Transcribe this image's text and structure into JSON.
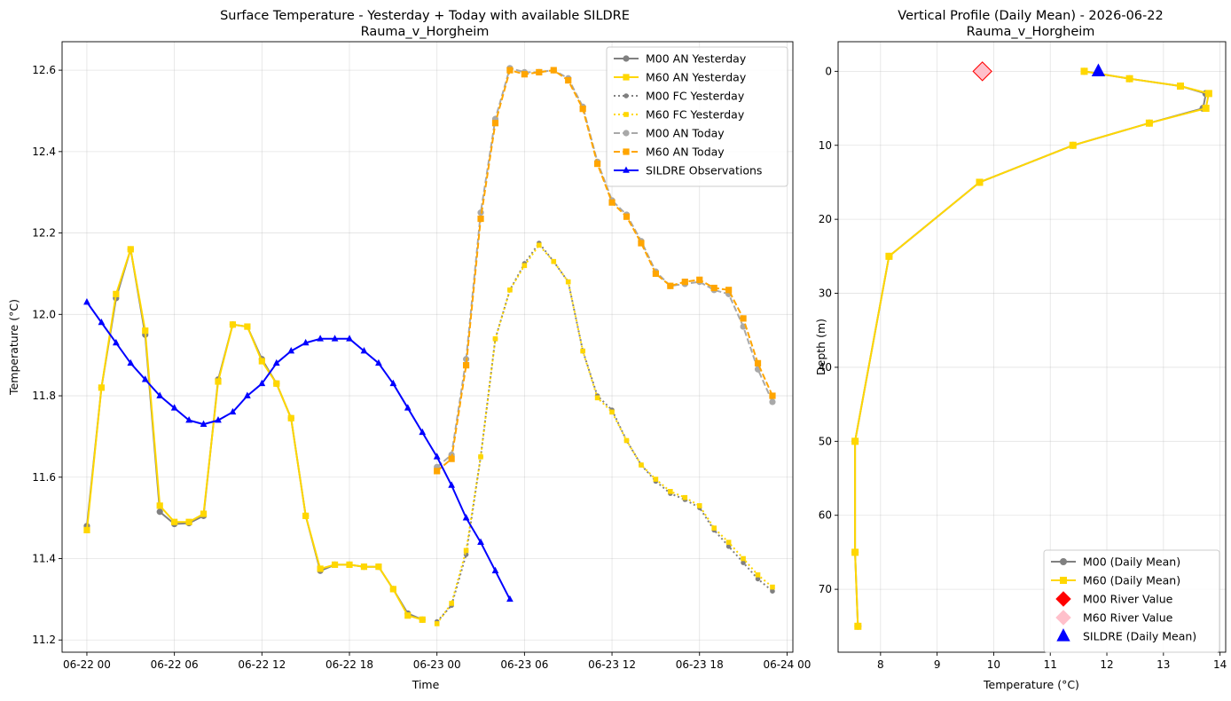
{
  "colors": {
    "gray": "#808080",
    "yellow": "#FFD700",
    "lightgray": "#A9A9A9",
    "orange": "#FFA500",
    "blue": "#0000FF",
    "red": "#FF0000",
    "pink": "#FFC0CB"
  },
  "chart_data": [
    {
      "type": "line",
      "title": "Surface Temperature - Yesterday + Today with available SILDRE",
      "subtitle": "Rauma_v_Horgheim",
      "xlabel": "Time",
      "ylabel": "Temperature (°C)",
      "xlim": [
        -1.7,
        48.4
      ],
      "ylim": [
        11.17,
        12.67
      ],
      "grid": true,
      "legend_position": "top-right",
      "xticks": [
        {
          "v": 0,
          "label": "06-22 00"
        },
        {
          "v": 6,
          "label": "06-22 06"
        },
        {
          "v": 12,
          "label": "06-22 12"
        },
        {
          "v": 18,
          "label": "06-22 18"
        },
        {
          "v": 24,
          "label": "06-23 00"
        },
        {
          "v": 30,
          "label": "06-23 06"
        },
        {
          "v": 36,
          "label": "06-23 12"
        },
        {
          "v": 42,
          "label": "06-23 18"
        },
        {
          "v": 48,
          "label": "06-24 00"
        }
      ],
      "yticks": [
        {
          "v": 11.2,
          "label": "11.2"
        },
        {
          "v": 11.4,
          "label": "11.4"
        },
        {
          "v": 11.6,
          "label": "11.6"
        },
        {
          "v": 11.8,
          "label": "11.8"
        },
        {
          "v": 12.0,
          "label": "12.0"
        },
        {
          "v": 12.2,
          "label": "12.2"
        },
        {
          "v": 12.4,
          "label": "12.4"
        },
        {
          "v": 12.6,
          "label": "12.6"
        }
      ],
      "series": [
        {
          "name": "M00 AN Yesterday",
          "color": "gray",
          "marker": "circle",
          "dash": "solid",
          "x": [
            0,
            1,
            2,
            3,
            4,
            5,
            6,
            7,
            8,
            9,
            10,
            11,
            12,
            13,
            14,
            15,
            16,
            17,
            18,
            19,
            20,
            21,
            22,
            23
          ],
          "y": [
            11.48,
            11.82,
            12.04,
            12.16,
            11.95,
            11.515,
            11.485,
            11.487,
            11.505,
            11.84,
            11.975,
            11.97,
            11.89,
            11.83,
            11.745,
            11.505,
            11.37,
            11.385,
            11.385,
            11.38,
            11.38,
            11.325,
            11.265,
            11.25
          ]
        },
        {
          "name": "M60 AN Yesterday",
          "color": "yellow",
          "marker": "square",
          "dash": "solid",
          "x": [
            0,
            1,
            2,
            3,
            4,
            5,
            6,
            7,
            8,
            9,
            10,
            11,
            12,
            13,
            14,
            15,
            16,
            17,
            18,
            19,
            20,
            21,
            22,
            23
          ],
          "y": [
            11.47,
            11.82,
            12.05,
            12.16,
            11.96,
            11.53,
            11.49,
            11.49,
            11.51,
            11.835,
            11.975,
            11.97,
            11.885,
            11.83,
            11.745,
            11.505,
            11.375,
            11.385,
            11.385,
            11.38,
            11.38,
            11.325,
            11.26,
            11.25
          ]
        },
        {
          "name": "M00 FC Yesterday",
          "color": "gray",
          "marker": "circle",
          "dash": "dotted",
          "x": [
            24,
            25,
            26,
            27,
            28,
            29,
            30,
            31,
            32,
            33,
            34,
            35,
            36,
            37,
            38,
            39,
            40,
            41,
            42,
            43,
            44,
            45,
            46,
            47
          ],
          "y": [
            11.245,
            11.285,
            11.41,
            11.65,
            11.94,
            12.06,
            12.125,
            12.175,
            12.13,
            12.08,
            11.91,
            11.8,
            11.765,
            11.69,
            11.63,
            11.59,
            11.56,
            11.545,
            11.525,
            11.47,
            11.43,
            11.39,
            11.35,
            11.32
          ]
        },
        {
          "name": "M60 FC Yesterday",
          "color": "yellow",
          "marker": "square",
          "dash": "dotted",
          "x": [
            24,
            25,
            26,
            27,
            28,
            29,
            30,
            31,
            32,
            33,
            34,
            35,
            36,
            37,
            38,
            39,
            40,
            41,
            42,
            43,
            44,
            45,
            46,
            47
          ],
          "y": [
            11.24,
            11.29,
            11.42,
            11.65,
            11.94,
            12.06,
            12.12,
            12.17,
            12.13,
            12.08,
            11.91,
            11.795,
            11.76,
            11.69,
            11.63,
            11.595,
            11.565,
            11.55,
            11.53,
            11.475,
            11.44,
            11.4,
            11.36,
            11.33
          ]
        },
        {
          "name": "M00 AN Today",
          "color": "lightgray",
          "marker": "circle",
          "dash": "dashed",
          "x": [
            24,
            25,
            26,
            27,
            28,
            29,
            30,
            31,
            32,
            33,
            34,
            35,
            36,
            37,
            38,
            39,
            40,
            41,
            42,
            43,
            44,
            45,
            46,
            47
          ],
          "y": [
            11.625,
            11.655,
            11.89,
            12.25,
            12.48,
            12.605,
            12.595,
            12.595,
            12.6,
            12.58,
            12.51,
            12.375,
            12.28,
            12.245,
            12.18,
            12.105,
            12.07,
            12.075,
            12.08,
            12.06,
            12.05,
            11.97,
            11.865,
            11.785
          ]
        },
        {
          "name": "M60 AN Today",
          "color": "orange",
          "marker": "square",
          "dash": "dashed",
          "x": [
            24,
            25,
            26,
            27,
            28,
            29,
            30,
            31,
            32,
            33,
            34,
            35,
            36,
            37,
            38,
            39,
            40,
            41,
            42,
            43,
            44,
            45,
            46,
            47
          ],
          "y": [
            11.615,
            11.645,
            11.875,
            12.235,
            12.47,
            12.6,
            12.59,
            12.595,
            12.6,
            12.575,
            12.505,
            12.37,
            12.275,
            12.24,
            12.175,
            12.1,
            12.07,
            12.08,
            12.085,
            12.065,
            12.06,
            11.99,
            11.88,
            11.8
          ]
        },
        {
          "name": "SILDRE Observations",
          "color": "blue",
          "marker": "triangle",
          "dash": "solid",
          "x": [
            0,
            1,
            2,
            3,
            4,
            5,
            6,
            7,
            8,
            9,
            10,
            11,
            12,
            13,
            14,
            15,
            16,
            17,
            18,
            19,
            20,
            21,
            22,
            23,
            24,
            25,
            26,
            27,
            28,
            29
          ],
          "y": [
            12.03,
            11.98,
            11.93,
            11.88,
            11.84,
            11.8,
            11.77,
            11.74,
            11.73,
            11.74,
            11.76,
            11.8,
            11.83,
            11.88,
            11.91,
            11.93,
            11.94,
            11.94,
            11.94,
            11.91,
            11.88,
            11.83,
            11.77,
            11.71,
            11.65,
            11.58,
            11.5,
            11.44,
            11.37,
            11.3
          ]
        }
      ]
    },
    {
      "type": "line",
      "title": "Vertical Profile (Daily Mean) - 2026-06-22",
      "subtitle": "Rauma_v_Horgheim",
      "xlabel": "Temperature (°C)",
      "ylabel": "Depth (m)",
      "xlim": [
        7.25,
        14.1
      ],
      "ylim": [
        78.5,
        -4.0
      ],
      "y_inverted": true,
      "grid": true,
      "legend_position": "bottom-right",
      "xticks": [
        {
          "v": 8,
          "label": "8"
        },
        {
          "v": 9,
          "label": "9"
        },
        {
          "v": 10,
          "label": "10"
        },
        {
          "v": 11,
          "label": "11"
        },
        {
          "v": 12,
          "label": "12"
        },
        {
          "v": 13,
          "label": "13"
        },
        {
          "v": 14,
          "label": "14"
        }
      ],
      "yticks": [
        {
          "v": 0,
          "label": "0"
        },
        {
          "v": 10,
          "label": "10"
        },
        {
          "v": 20,
          "label": "20"
        },
        {
          "v": 30,
          "label": "30"
        },
        {
          "v": 40,
          "label": "40"
        },
        {
          "v": 50,
          "label": "50"
        },
        {
          "v": 60,
          "label": "60"
        },
        {
          "v": 70,
          "label": "70"
        }
      ],
      "series": [
        {
          "name": "M00 (Daily Mean)",
          "color": "gray",
          "marker": "circle",
          "dash": "solid",
          "temp": [
            11.6,
            12.4,
            13.3,
            13.75,
            13.7,
            12.75,
            11.4,
            9.75,
            8.15,
            7.55,
            7.55,
            7.6
          ],
          "depth": [
            0,
            1,
            2,
            3,
            5,
            7,
            10,
            15,
            25,
            50,
            65,
            75
          ]
        },
        {
          "name": "M60 (Daily Mean)",
          "color": "yellow",
          "marker": "square",
          "dash": "solid",
          "temp": [
            11.6,
            12.4,
            13.3,
            13.8,
            13.75,
            12.75,
            11.4,
            9.75,
            8.15,
            7.55,
            7.55,
            7.6
          ],
          "depth": [
            0,
            1,
            2,
            3,
            5,
            7,
            10,
            15,
            25,
            50,
            65,
            75
          ]
        }
      ],
      "markers": [
        {
          "name": "M00 River Value",
          "color": "red",
          "marker": "diamond",
          "temp": 9.8,
          "depth": 0
        },
        {
          "name": "M60 River Value",
          "color": "pink",
          "marker": "diamond",
          "temp": 9.8,
          "depth": 0
        },
        {
          "name": "SILDRE (Daily Mean)",
          "color": "blue",
          "marker": "triangle",
          "temp": 11.85,
          "depth": 0
        }
      ]
    }
  ]
}
